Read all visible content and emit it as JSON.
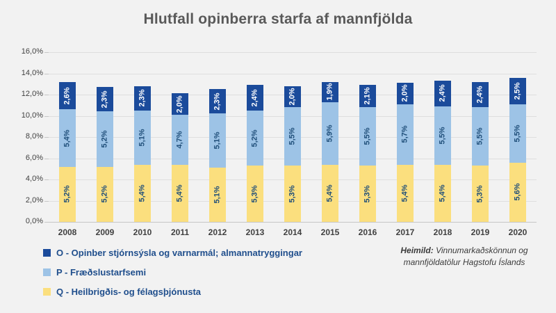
{
  "title": "Hlutfall opinberra starfa af mannfjölda",
  "chart_data": {
    "type": "bar",
    "stacked": true,
    "title": "Hlutfall opinberra starfa af mannfjölda",
    "categories": [
      "2008",
      "2009",
      "2010",
      "2011",
      "2012",
      "2013",
      "2014",
      "2015",
      "2016",
      "2017",
      "2018",
      "2019",
      "2020"
    ],
    "series": [
      {
        "id": "Q",
        "name": "Q - Heilbrigðis- og félagsþjónusta",
        "color": "#FBDF7E",
        "label_color": "#1F4E79",
        "values": [
          5.2,
          5.2,
          5.4,
          5.4,
          5.1,
          5.3,
          5.3,
          5.4,
          5.3,
          5.4,
          5.4,
          5.3,
          5.6
        ]
      },
      {
        "id": "P",
        "name": "P - Fræðslustarfsemi",
        "color": "#9DC3E6",
        "label_color": "#1F4E79",
        "values": [
          5.4,
          5.2,
          5.1,
          4.7,
          5.1,
          5.2,
          5.5,
          5.9,
          5.5,
          5.7,
          5.5,
          5.5,
          5.5
        ]
      },
      {
        "id": "O",
        "name": "O - Opinber stjórnsýsla og varnarmál; almannatryggingar",
        "color": "#1B4B9B",
        "label_color": "#FFFFFF",
        "values": [
          2.6,
          2.3,
          2.3,
          2.0,
          2.3,
          2.4,
          2.0,
          1.9,
          2.1,
          2.0,
          2.4,
          2.4,
          2.5
        ]
      }
    ],
    "y_ticks": [
      "16,0%",
      "14,0%",
      "12,0%",
      "10,0%",
      "8,0%",
      "6,0%",
      "4,0%",
      "2,0%",
      "0,0%"
    ],
    "ylim": [
      0,
      16
    ],
    "grid": true,
    "data_label_format": "comma-decimal-percent",
    "legend_position": "bottom-left"
  },
  "legend": {
    "order": [
      "O",
      "P",
      "Q"
    ]
  },
  "source": {
    "label": "Heimild:",
    "text": "Vinnumarkaðskönnun og mannfjöldatölur Hagstofu Íslands"
  }
}
